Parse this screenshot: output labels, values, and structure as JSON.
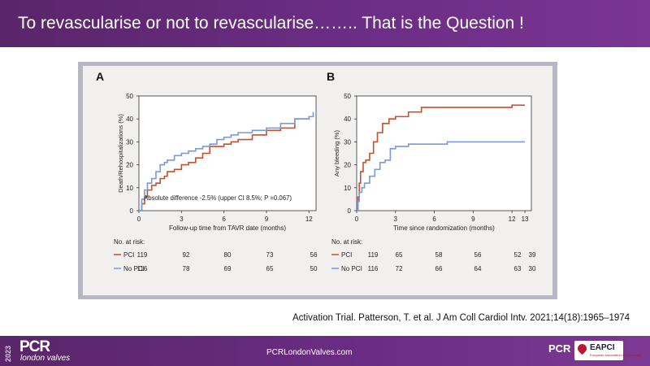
{
  "title": "To revascularise or not to revascularise…….. That is the Question !",
  "citation": "Activation Trial. Patterson, T. et al. J Am Coll Cardiol Intv. 2021;14(18):1965–1974",
  "footer": {
    "year": "2023",
    "logo": "PCR",
    "logo_sub": "london valves",
    "website": "PCRLondonValves.com",
    "pcr_small": "PCR",
    "eapci": "EAPCI",
    "eapci_sub": "European Association of Cardiology"
  },
  "colors": {
    "pci": "#c4512e",
    "nopci": "#7c99d6",
    "title_bar": "#6b2d86"
  },
  "chart_data": [
    {
      "panel_label": "A",
      "type": "line",
      "xlabel": "Follow-up time from TAVR date (months)",
      "ylabel": "Death/Rehospitalizations (%)",
      "xlim": [
        0,
        12.5
      ],
      "ylim": [
        0,
        50
      ],
      "xticks": [
        "0",
        "3",
        "6",
        "9",
        "12"
      ],
      "yticks": [
        "0",
        "10",
        "20",
        "30",
        "40",
        "50"
      ],
      "annotation": "Absolute difference -2.5% (upper CI 8.5%;  P =0.067)",
      "series": [
        {
          "name": "PCI",
          "color": "#c4512e",
          "x": [
            0,
            0.2,
            0.4,
            0.6,
            0.9,
            1.2,
            1.5,
            1.8,
            2,
            2.5,
            3,
            3.5,
            4,
            4.5,
            5,
            5.5,
            6,
            6.5,
            7,
            8,
            9,
            10,
            11,
            12
          ],
          "y": [
            0,
            3,
            6,
            9,
            11,
            12,
            14,
            15,
            17,
            18,
            20,
            21,
            23,
            25,
            28,
            28,
            29,
            30,
            31,
            33,
            35,
            36,
            40,
            41
          ]
        },
        {
          "name": "No PCI",
          "color": "#7c99d6",
          "x": [
            0,
            0.2,
            0.4,
            0.6,
            0.9,
            1.2,
            1.5,
            1.8,
            2,
            2.5,
            3,
            3.5,
            4,
            4.5,
            5,
            5.5,
            6,
            6.5,
            7,
            8,
            9,
            10,
            11,
            12,
            12.3
          ],
          "y": [
            0,
            5,
            9,
            12,
            14,
            17,
            20,
            21,
            22,
            24,
            25,
            26,
            27,
            28,
            29,
            31,
            32,
            33,
            34,
            35,
            36,
            38,
            40,
            41,
            43
          ]
        }
      ],
      "risk_table": {
        "header": "No. at risk:",
        "ticks": [
          "0",
          "3",
          "6",
          "9",
          "12"
        ],
        "rows": [
          {
            "label": "PCI",
            "values": [
              "119",
              "92",
              "80",
              "73",
              "56"
            ]
          },
          {
            "label": "No PCI",
            "values": [
              "116",
              "78",
              "69",
              "65",
              "50"
            ]
          }
        ]
      }
    },
    {
      "panel_label": "B",
      "type": "line",
      "xlabel": "Time since randomization (months)",
      "ylabel": "Any bleeding (%)",
      "xlim": [
        0,
        13.5
      ],
      "ylim": [
        0,
        50
      ],
      "xticks": [
        "0",
        "3",
        "6",
        "9",
        "12",
        "13"
      ],
      "yticks": [
        "0",
        "10",
        "20",
        "30",
        "40",
        "50"
      ],
      "series": [
        {
          "name": "PCI",
          "color": "#c4512e",
          "x": [
            0,
            0.1,
            0.2,
            0.3,
            0.5,
            0.7,
            1,
            1.3,
            1.6,
            2,
            2.5,
            3,
            4,
            5,
            6,
            7,
            9,
            12,
            13
          ],
          "y": [
            0,
            6,
            12,
            17,
            21,
            22,
            25,
            30,
            34,
            38,
            40,
            41,
            43,
            45,
            45,
            45,
            45,
            46,
            46
          ]
        },
        {
          "name": "No PCI",
          "color": "#7c99d6",
          "x": [
            0,
            0.1,
            0.2,
            0.4,
            0.6,
            1,
            1.4,
            1.8,
            2.2,
            2.6,
            3,
            4,
            5,
            6,
            7,
            9,
            12,
            13
          ],
          "y": [
            0,
            4,
            8,
            10,
            12,
            15,
            18,
            21,
            22,
            27,
            28,
            29,
            29,
            29,
            30,
            30,
            30,
            30
          ]
        }
      ],
      "risk_table": {
        "header": "No. at risk:",
        "ticks": [
          "0",
          "3",
          "6",
          "9",
          "12",
          "13"
        ],
        "rows": [
          {
            "label": "PCI",
            "values": [
              "119",
              "65",
              "58",
              "56",
              "52",
              "39"
            ]
          },
          {
            "label": "No PCI",
            "values": [
              "116",
              "72",
              "66",
              "64",
              "63",
              "30"
            ]
          }
        ]
      }
    }
  ]
}
